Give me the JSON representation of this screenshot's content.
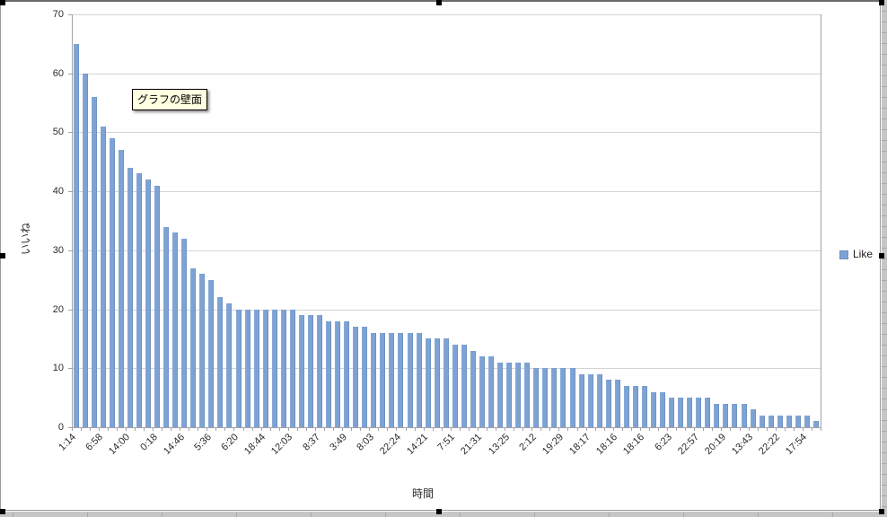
{
  "chart_data": {
    "type": "bar",
    "title": "",
    "xlabel": "時間",
    "ylabel": "いいね",
    "ylim": [
      0,
      70
    ],
    "yticks": [
      0,
      10,
      20,
      30,
      40,
      50,
      60,
      70
    ],
    "grid": true,
    "legend_position": "right",
    "x_label_every": 3,
    "x_tick_labels": [
      "1:14",
      "6:58",
      "14:00",
      "0:18",
      "14:46",
      "5:36",
      "6:20",
      "18:44",
      "12:03",
      "8:37",
      "3:49",
      "8:03",
      "22:24",
      "14:21",
      "7:51",
      "21:31",
      "13:25",
      "2:12",
      "19:29",
      "18:17",
      "18:16",
      "18:16",
      "6:23",
      "22:57",
      "20:19",
      "13:43",
      "22:22",
      "17:54"
    ],
    "series": [
      {
        "name": "Like",
        "color": "#7DA2D3",
        "values": [
          65,
          60,
          56,
          51,
          49,
          47,
          44,
          43,
          42,
          41,
          34,
          33,
          32,
          27,
          26,
          25,
          22,
          21,
          20,
          20,
          20,
          20,
          20,
          20,
          20,
          19,
          19,
          19,
          18,
          18,
          18,
          17,
          17,
          16,
          16,
          16,
          16,
          16,
          16,
          15,
          15,
          15,
          14,
          14,
          13,
          12,
          12,
          11,
          11,
          11,
          11,
          10,
          10,
          10,
          10,
          10,
          9,
          9,
          9,
          8,
          8,
          7,
          7,
          7,
          6,
          6,
          5,
          5,
          5,
          5,
          5,
          4,
          4,
          4,
          4,
          3,
          2,
          2,
          2,
          2,
          2,
          2,
          1
        ]
      }
    ]
  },
  "tooltip": {
    "text": "グラフの壁面"
  },
  "legend": {
    "label": "Like"
  },
  "colors": {
    "bar": "#7DA2D3",
    "gridline": "#D4D4D4",
    "axis": "#A3A3A3",
    "tooltip_bg": "#FFFFE1"
  }
}
